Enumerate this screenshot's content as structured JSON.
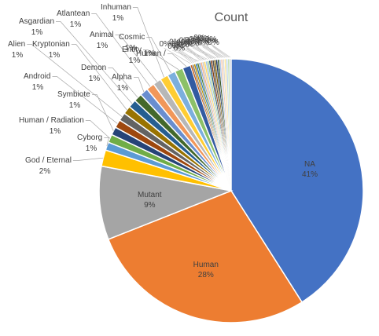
{
  "chart_data": {
    "type": "pie",
    "title": "Count",
    "series": [
      {
        "values": [
          {
            "label": "NA",
            "value": 41,
            "color": "#4472C4"
          },
          {
            "label": "Human",
            "value": 28,
            "color": "#ED7D31"
          },
          {
            "label": "Mutant",
            "value": 9,
            "color": "#A5A5A5"
          },
          {
            "label": "God / Eternal",
            "value": 2,
            "color": "#FFC000"
          },
          {
            "label": "Cyborg",
            "value": 1,
            "color": "#5B9BD5"
          },
          {
            "label": "Human / Radiation",
            "value": 1,
            "color": "#70AD47"
          },
          {
            "label": "Symbiote",
            "value": 1,
            "color": "#264478"
          },
          {
            "label": "Android",
            "value": 1,
            "color": "#9E480E"
          },
          {
            "label": "Alien",
            "value": 1,
            "color": "#636363"
          },
          {
            "label": "Kryptonian",
            "value": 1,
            "color": "#997300"
          },
          {
            "label": "Asgardian",
            "value": 1,
            "color": "#255E91"
          },
          {
            "label": "Demon",
            "value": 1,
            "color": "#43682B"
          },
          {
            "label": "Alpha",
            "value": 1,
            "color": "#698ED0"
          },
          {
            "label": "Atlantean",
            "value": 1,
            "color": "#F1975A"
          },
          {
            "label": "Animal",
            "value": 1,
            "color": "#B7B7B7"
          },
          {
            "label": "Inhuman",
            "value": 1,
            "color": "#FFCD33"
          },
          {
            "label": "Cosmic",
            "value": 1,
            "color": "#7CAFDD"
          },
          {
            "label": "Entity",
            "value": 1,
            "color": "#8CC168"
          },
          {
            "label": "Human /",
            "value": 1,
            "color": "#335AA1"
          }
        ],
        "label_format": "{label}\n{value}%"
      }
    ],
    "tail_label_text": "0%",
    "tail_colors": [
      "#C55A11",
      "#7B7B7B",
      "#BF9000",
      "#2E75B6",
      "#548235",
      "#8FAADC",
      "#F4B183",
      "#C9C9C9",
      "#FFD966",
      "#9DC3E6",
      "#A9D18E",
      "#1F4E79",
      "#843C0C",
      "#525252",
      "#7F6000",
      "#1F3864",
      "#385723",
      "#B4C7E7",
      "#F8CBAD",
      "#DBDBDB",
      "#FFE699",
      "#BDD7EE",
      "#C5E0B4",
      "#D6DCE5"
    ]
  }
}
